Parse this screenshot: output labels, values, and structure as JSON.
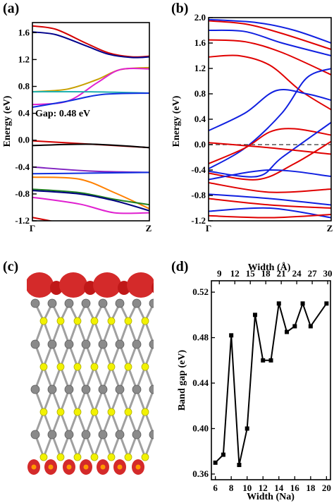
{
  "panels": {
    "a": {
      "label": "(a)"
    },
    "b": {
      "label": "(b)"
    },
    "c": {
      "label": "(c)"
    },
    "d": {
      "label": "(d)"
    }
  },
  "panel_a": {
    "ylabel": "Energy (eV)",
    "yticks": [
      "-1.2",
      "-0.8",
      "-0.4",
      "0.0",
      "0.4",
      "0.8",
      "1.2",
      "1.6"
    ],
    "xticks": [
      "Γ",
      "Z"
    ],
    "annotation": "Gap: 0.48 eV"
  },
  "panel_b": {
    "ylabel": "Energy (eV)",
    "yticks": [
      "-1.2",
      "-0.8",
      "-0.4",
      "0.0",
      "0.4",
      "0.8",
      "1.2",
      "1.6",
      "2.0"
    ],
    "xticks": [
      "Γ",
      "Z"
    ]
  },
  "chart_data": [
    {
      "panel": "a",
      "type": "line",
      "ylabel": "Energy (eV)",
      "ylim": [
        -1.2,
        1.75
      ],
      "x": [
        "Γ",
        "Z"
      ],
      "series": [
        {
          "color": "#d40000",
          "values": [
            [
              0,
              1.7
            ],
            [
              0.2,
              1.65
            ],
            [
              0.45,
              1.45
            ],
            [
              0.65,
              1.3
            ],
            [
              0.85,
              1.24
            ],
            [
              1,
              1.25
            ]
          ]
        },
        {
          "color": "#00008b",
          "values": [
            [
              0,
              1.61
            ],
            [
              0.2,
              1.57
            ],
            [
              0.45,
              1.41
            ],
            [
              0.65,
              1.28
            ],
            [
              0.85,
              1.23
            ],
            [
              1,
              1.24
            ]
          ]
        },
        {
          "color": "#c8a000",
          "values": [
            [
              0,
              0.72
            ],
            [
              0.3,
              0.76
            ],
            [
              0.55,
              0.9
            ],
            [
              0.75,
              1.05
            ],
            [
              1,
              1.08
            ]
          ]
        },
        {
          "color": "#e020d0",
          "values": [
            [
              0,
              0.53
            ],
            [
              0.3,
              0.58
            ],
            [
              0.55,
              0.85
            ],
            [
              0.75,
              1.05
            ],
            [
              1,
              1.06
            ]
          ]
        },
        {
          "color": "#20b0b0",
          "values": [
            [
              0,
              0.72
            ],
            [
              0.5,
              0.72
            ],
            [
              1,
              0.7
            ]
          ]
        },
        {
          "color": "#1030e0",
          "values": [
            [
              0,
              0.49
            ],
            [
              0.3,
              0.58
            ],
            [
              0.6,
              0.68
            ],
            [
              1,
              0.7
            ]
          ]
        },
        {
          "color": "#d40000",
          "values": [
            [
              0,
              -0.01
            ],
            [
              0.5,
              -0.06
            ],
            [
              1,
              -0.11
            ]
          ]
        },
        {
          "color": "#000000",
          "values": [
            [
              0,
              -0.08
            ],
            [
              0.5,
              -0.06
            ],
            [
              1,
              -0.11
            ]
          ]
        },
        {
          "color": "#8020c0",
          "values": [
            [
              0,
              -0.4
            ],
            [
              0.5,
              -0.46
            ],
            [
              1,
              -0.48
            ]
          ]
        },
        {
          "color": "#1030e0",
          "values": [
            [
              0,
              -0.5
            ],
            [
              0.5,
              -0.49
            ],
            [
              1,
              -0.48
            ]
          ]
        },
        {
          "color": "#ff8000",
          "values": [
            [
              0,
              -0.55
            ],
            [
              0.4,
              -0.58
            ],
            [
              0.7,
              -0.78
            ],
            [
              1,
              -1.02
            ]
          ]
        },
        {
          "color": "#208020",
          "values": [
            [
              0,
              -0.73
            ],
            [
              0.4,
              -0.78
            ],
            [
              0.7,
              -0.88
            ],
            [
              1,
              -0.96
            ]
          ]
        },
        {
          "color": "#000080",
          "values": [
            [
              0,
              -0.75
            ],
            [
              0.4,
              -0.8
            ],
            [
              0.7,
              -0.9
            ],
            [
              1,
              -1.05
            ]
          ]
        },
        {
          "color": "#e020d0",
          "values": [
            [
              0,
              -0.85
            ],
            [
              0.4,
              -0.95
            ],
            [
              0.7,
              -1.08
            ],
            [
              1,
              -1.08
            ]
          ]
        },
        {
          "color": "#d40000",
          "values": [
            [
              0,
              -1.15
            ],
            [
              0.3,
              -1.25
            ]
          ]
        }
      ]
    },
    {
      "panel": "b",
      "type": "line",
      "ylabel": "Energy (eV)",
      "ylim": [
        -1.2,
        2.0
      ],
      "x": [
        "Γ",
        "Z"
      ],
      "fermi_level": 0.0,
      "series": [
        {
          "color": "#e00000",
          "values": [
            [
              0,
              1.38
            ],
            [
              0.25,
              1.4
            ],
            [
              0.5,
              1.25
            ],
            [
              0.75,
              0.85
            ],
            [
              1,
              0.55
            ]
          ]
        },
        {
          "color": "#e00000",
          "values": [
            [
              0,
              1.65
            ],
            [
              0.3,
              1.62
            ],
            [
              0.6,
              1.45
            ],
            [
              1,
              1.1
            ]
          ]
        },
        {
          "color": "#e00000",
          "values": [
            [
              0,
              1.95
            ],
            [
              0.3,
              1.9
            ],
            [
              0.6,
              1.75
            ],
            [
              1,
              1.5
            ]
          ]
        },
        {
          "color": "#1020e0",
          "values": [
            [
              0,
              1.8
            ],
            [
              0.3,
              1.78
            ],
            [
              0.6,
              1.6
            ],
            [
              1,
              1.4
            ]
          ]
        },
        {
          "color": "#1020e0",
          "values": [
            [
              0,
              1.97
            ],
            [
              0.4,
              1.92
            ],
            [
              0.7,
              1.8
            ],
            [
              1,
              1.6
            ]
          ]
        },
        {
          "color": "#1020e0",
          "values": [
            [
              0,
              0.22
            ],
            [
              0.3,
              0.5
            ],
            [
              0.55,
              0.85
            ],
            [
              0.8,
              0.8
            ],
            [
              1,
              0.7
            ]
          ]
        },
        {
          "color": "#1020e0",
          "values": [
            [
              0,
              -0.38
            ],
            [
              0.3,
              -0.05
            ],
            [
              0.6,
              0.5
            ],
            [
              0.8,
              1.05
            ],
            [
              1,
              1.2
            ]
          ]
        },
        {
          "color": "#e00000",
          "values": [
            [
              0,
              -0.3
            ],
            [
              0.3,
              -0.05
            ],
            [
              0.5,
              0.2
            ],
            [
              0.7,
              0.25
            ],
            [
              1,
              0.15
            ]
          ]
        },
        {
          "color": "#1020e0",
          "values": [
            [
              0,
              -0.42
            ],
            [
              0.4,
              -0.5
            ],
            [
              0.6,
              -0.2
            ],
            [
              1,
              0.35
            ]
          ]
        },
        {
          "color": "#e00000",
          "values": [
            [
              0,
              -0.45
            ],
            [
              0.4,
              -0.55
            ],
            [
              0.7,
              -0.3
            ],
            [
              1,
              0.05
            ]
          ]
        },
        {
          "color": "#e00000",
          "values": [
            [
              0,
              0.03
            ],
            [
              0.5,
              -0.05
            ],
            [
              1,
              -0.15
            ]
          ]
        },
        {
          "color": "#1020e0",
          "values": [
            [
              0,
              -0.55
            ],
            [
              0.5,
              -0.4
            ],
            [
              1,
              -0.5
            ]
          ]
        },
        {
          "color": "#e00000",
          "values": [
            [
              0,
              -0.6
            ],
            [
              0.5,
              -0.75
            ],
            [
              1,
              -0.7
            ]
          ]
        },
        {
          "color": "#1020e0",
          "values": [
            [
              0,
              -0.78
            ],
            [
              0.5,
              -0.85
            ],
            [
              1,
              -0.95
            ]
          ]
        },
        {
          "color": "#e00000",
          "values": [
            [
              0,
              -0.85
            ],
            [
              0.5,
              -0.95
            ],
            [
              1,
              -1.0
            ]
          ]
        },
        {
          "color": "#1020e0",
          "values": [
            [
              0,
              -1.05
            ],
            [
              0.5,
              -1.0
            ],
            [
              1,
              -1.15
            ]
          ]
        },
        {
          "color": "#e00000",
          "values": [
            [
              0,
              -1.12
            ],
            [
              0.5,
              -1.15
            ],
            [
              1,
              -1.1
            ]
          ]
        }
      ]
    },
    {
      "panel": "d",
      "type": "line",
      "xlabel": "Width (Na)",
      "ylabel": "Band gap (eV)",
      "top_xlabel": "Width (Å)",
      "xlim": [
        5.5,
        20.5
      ],
      "ylim": [
        0.355,
        0.53
      ],
      "xticks": [
        6,
        8,
        10,
        12,
        14,
        16,
        18,
        20
      ],
      "yticks": [
        0.36,
        0.4,
        0.44,
        0.48,
        0.52
      ],
      "top_xticks": [
        9,
        12,
        15,
        18,
        21,
        24,
        27,
        30
      ],
      "x": [
        6,
        7,
        8,
        9,
        10,
        11,
        12,
        13,
        14,
        15,
        16,
        17,
        18,
        20
      ],
      "series": [
        {
          "values": [
            0.37,
            0.377,
            0.482,
            0.368,
            0.4,
            0.5,
            0.46,
            0.46,
            0.51,
            0.485,
            0.49,
            0.51,
            0.49,
            0.51
          ]
        }
      ]
    }
  ]
}
